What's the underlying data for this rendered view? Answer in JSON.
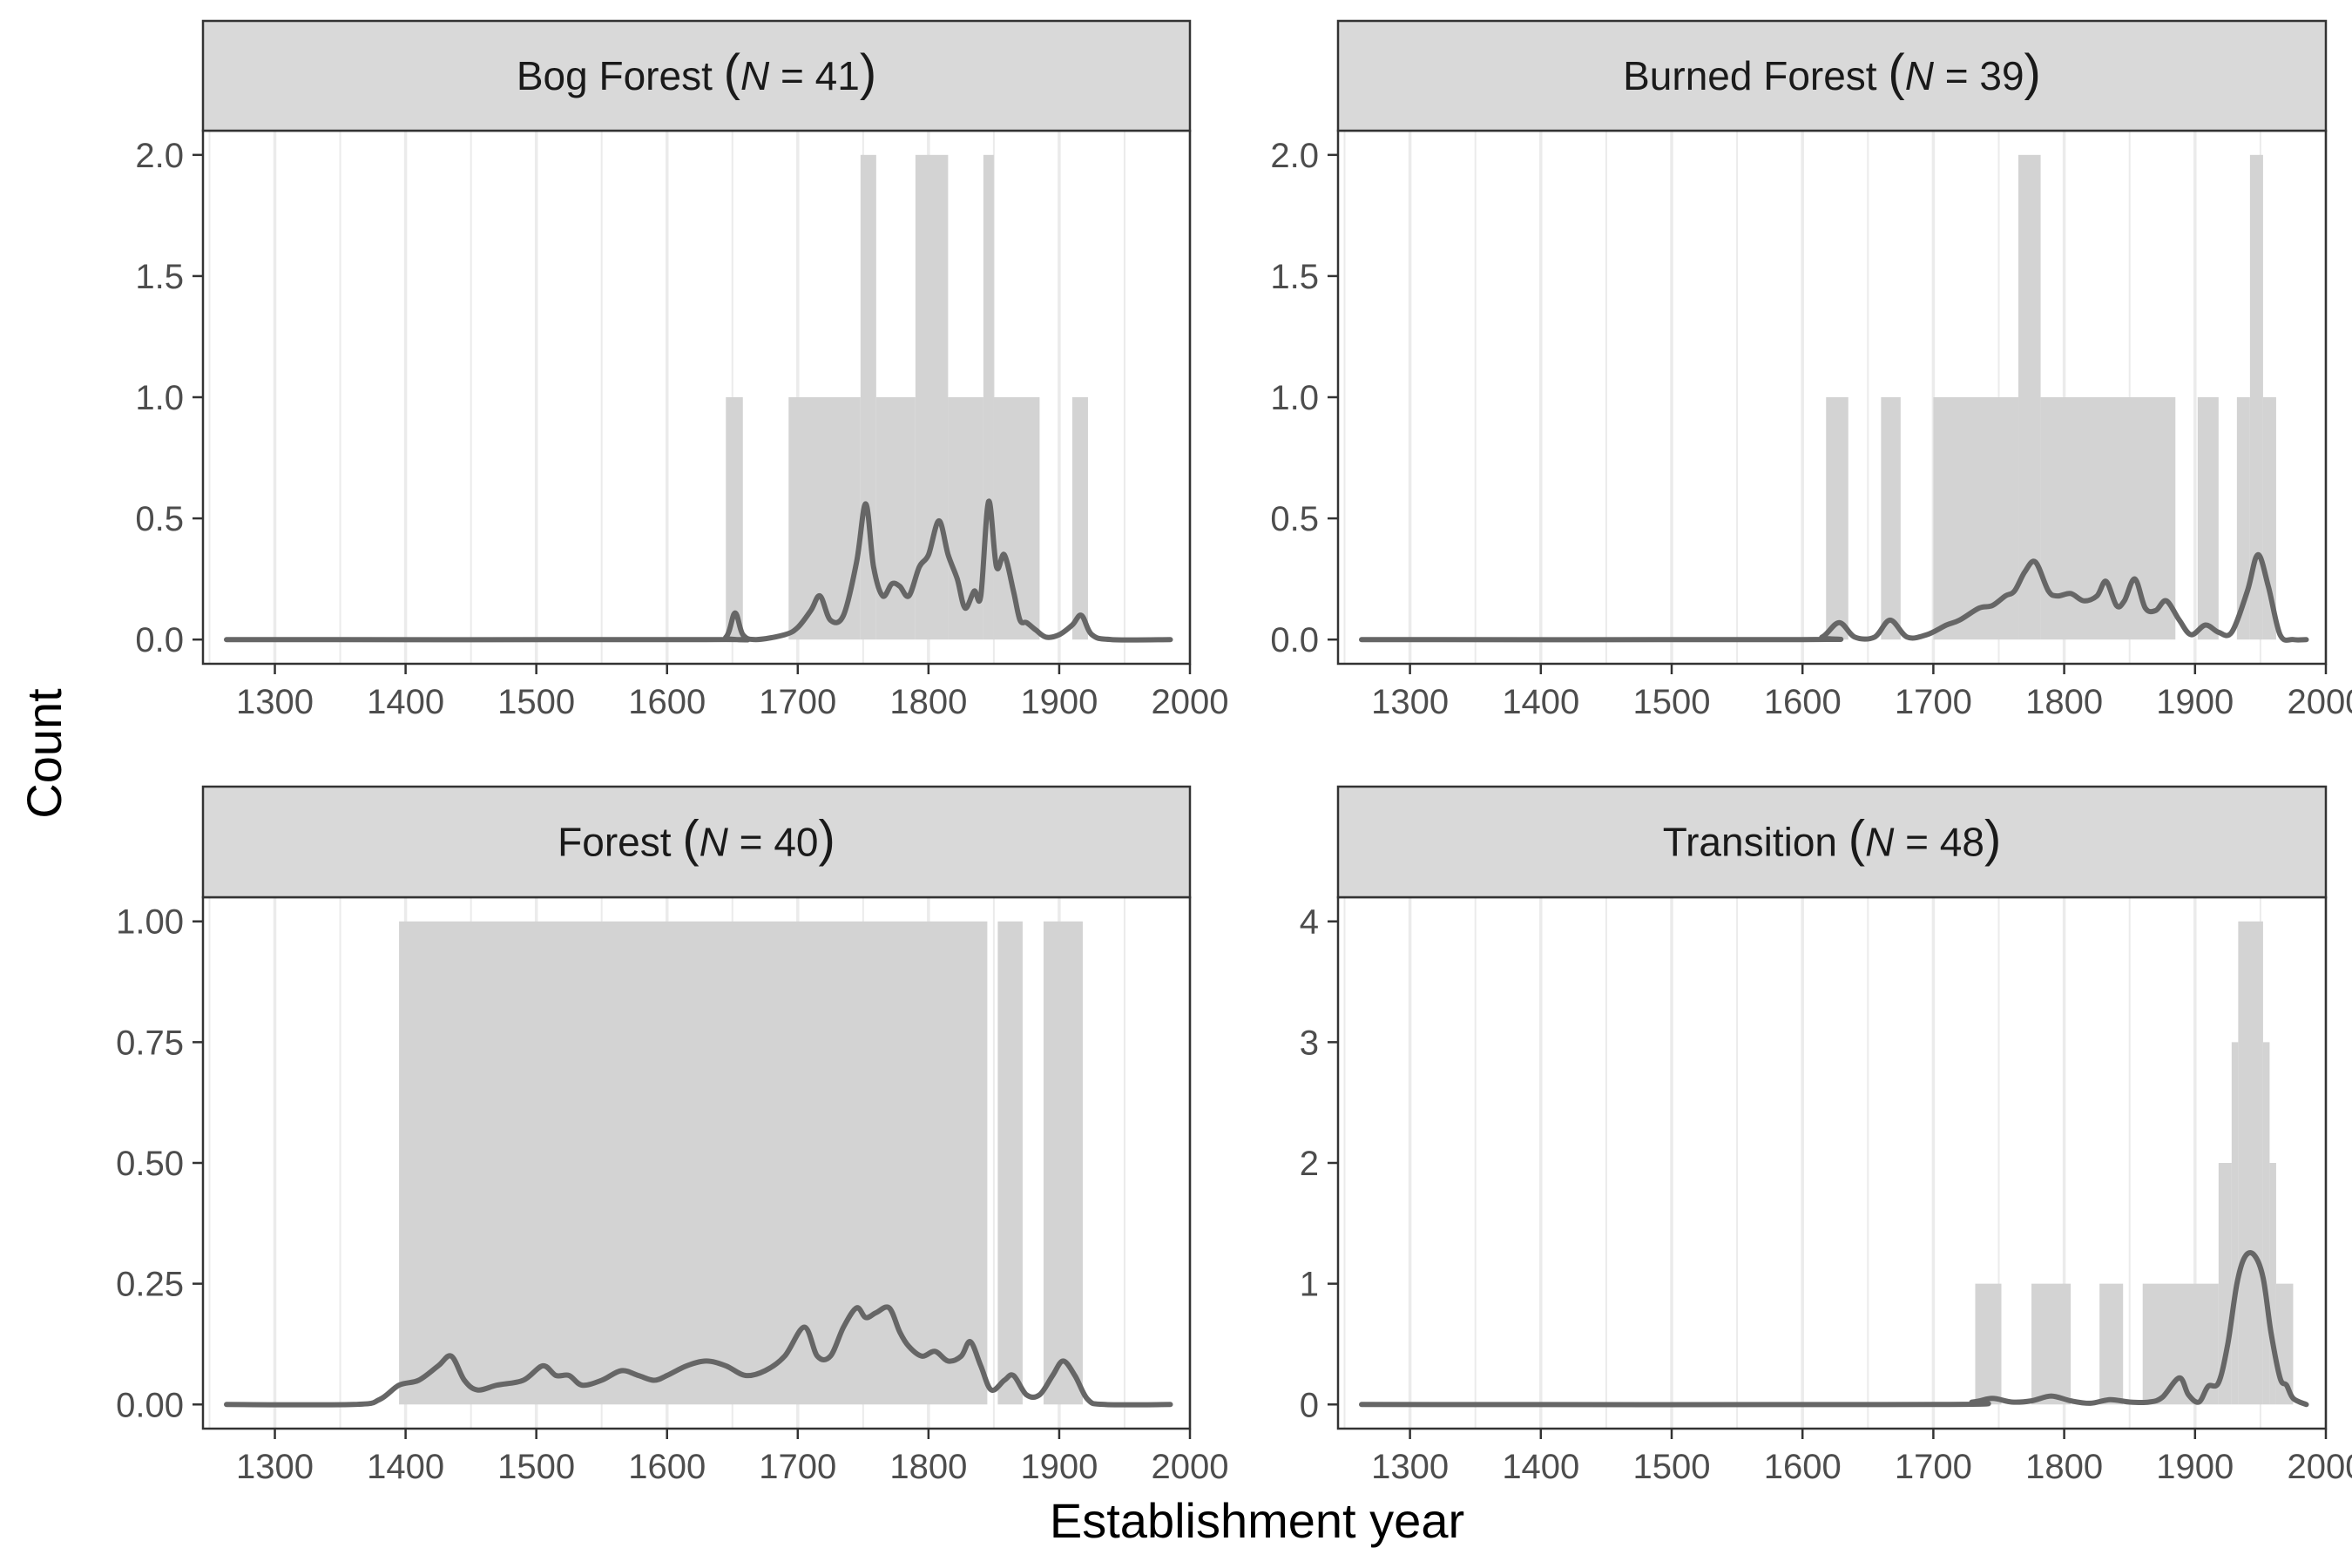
{
  "chart_data": {
    "type": "area",
    "xlabel": "Establishment year",
    "ylabel": "Count",
    "xlim": [
      1245,
      2000
    ],
    "x_ticks": [
      1300,
      1400,
      1500,
      1600,
      1700,
      1800,
      1900,
      2000
    ],
    "colors": {
      "histogram": "#d3d3d3",
      "density": "#666666",
      "grid": "#ebebeb",
      "strip": "#d9d9d9"
    },
    "panels": [
      {
        "title": "Bog Forest",
        "n_label": "41",
        "ylim": [
          -0.1,
          2.1
        ],
        "y_ticks": [
          0.0,
          0.5,
          1.0,
          1.5,
          2.0
        ],
        "y_tick_labels": [
          "0.0",
          "0.5",
          "1.0",
          "1.5",
          "2.0"
        ],
        "histogram": [
          {
            "x0": 1645,
            "x1": 1658,
            "count": 1
          },
          {
            "x0": 1693,
            "x1": 1748,
            "count": 1
          },
          {
            "x0": 1748,
            "x1": 1760,
            "count": 2
          },
          {
            "x0": 1760,
            "x1": 1790,
            "count": 1
          },
          {
            "x0": 1790,
            "x1": 1815,
            "count": 2
          },
          {
            "x0": 1815,
            "x1": 1842,
            "count": 1
          },
          {
            "x0": 1842,
            "x1": 1850,
            "count": 2
          },
          {
            "x0": 1850,
            "x1": 1885,
            "count": 1
          },
          {
            "x0": 1910,
            "x1": 1922,
            "count": 1
          }
        ],
        "density": {
          "x": [
            1263,
            1630,
            1645,
            1652,
            1658,
            1668,
            1690,
            1700,
            1710,
            1717,
            1725,
            1735,
            1745,
            1752,
            1758,
            1765,
            1772,
            1778,
            1785,
            1793,
            1800,
            1808,
            1815,
            1822,
            1828,
            1835,
            1840,
            1846,
            1852,
            1858,
            1865,
            1870,
            1875,
            1882,
            1890,
            1900,
            1910,
            1917,
            1925,
            1940,
            1985
          ],
          "y": [
            0,
            0,
            0.01,
            0.11,
            0.02,
            0,
            0.02,
            0.05,
            0.12,
            0.18,
            0.08,
            0.1,
            0.32,
            0.56,
            0.3,
            0.18,
            0.23,
            0.22,
            0.18,
            0.3,
            0.35,
            0.49,
            0.35,
            0.25,
            0.13,
            0.2,
            0.18,
            0.57,
            0.3,
            0.35,
            0.2,
            0.08,
            0.07,
            0.04,
            0.01,
            0.02,
            0.06,
            0.1,
            0.02,
            0,
            0
          ]
        }
      },
      {
        "title": "Burned Forest",
        "n_label": "39",
        "ylim": [
          -0.1,
          2.1
        ],
        "y_ticks": [
          0.0,
          0.5,
          1.0,
          1.5,
          2.0
        ],
        "y_tick_labels": [
          "0.0",
          "0.5",
          "1.0",
          "1.5",
          "2.0"
        ],
        "histogram": [
          {
            "x0": 1618,
            "x1": 1635,
            "count": 1
          },
          {
            "x0": 1660,
            "x1": 1675,
            "count": 1
          },
          {
            "x0": 1700,
            "x1": 1765,
            "count": 1
          },
          {
            "x0": 1765,
            "x1": 1782,
            "count": 2
          },
          {
            "x0": 1782,
            "x1": 1885,
            "count": 1
          },
          {
            "x0": 1902,
            "x1": 1918,
            "count": 1
          },
          {
            "x0": 1932,
            "x1": 1942,
            "count": 1
          },
          {
            "x0": 1942,
            "x1": 1952,
            "count": 2
          },
          {
            "x0": 1952,
            "x1": 1962,
            "count": 1
          }
        ],
        "density": {
          "x": [
            1263,
            1600,
            1615,
            1628,
            1640,
            1655,
            1667,
            1680,
            1695,
            1710,
            1720,
            1735,
            1745,
            1755,
            1762,
            1770,
            1778,
            1788,
            1795,
            1805,
            1815,
            1825,
            1832,
            1840,
            1846,
            1854,
            1862,
            1870,
            1878,
            1888,
            1897,
            1908,
            1918,
            1928,
            1940,
            1948,
            1956,
            1965,
            1975,
            1985
          ],
          "y": [
            0,
            0,
            0.01,
            0.07,
            0.01,
            0.01,
            0.08,
            0.01,
            0.02,
            0.06,
            0.08,
            0.13,
            0.14,
            0.18,
            0.2,
            0.28,
            0.32,
            0.2,
            0.18,
            0.19,
            0.16,
            0.18,
            0.24,
            0.14,
            0.16,
            0.25,
            0.13,
            0.12,
            0.16,
            0.08,
            0.02,
            0.06,
            0.03,
            0.03,
            0.2,
            0.35,
            0.22,
            0.02,
            0,
            0
          ]
        }
      },
      {
        "title": "Forest",
        "n_label": "40",
        "ylim": [
          -0.05,
          1.05
        ],
        "y_ticks": [
          0.0,
          0.25,
          0.5,
          0.75,
          1.0
        ],
        "y_tick_labels": [
          "0.00",
          "0.25",
          "0.50",
          "0.75",
          "1.00"
        ],
        "histogram": [
          {
            "x0": 1395,
            "x1": 1845,
            "count": 1
          },
          {
            "x0": 1853,
            "x1": 1872,
            "count": 1
          },
          {
            "x0": 1888,
            "x1": 1918,
            "count": 1
          }
        ],
        "density": {
          "x": [
            1263,
            1360,
            1380,
            1395,
            1410,
            1425,
            1435,
            1445,
            1455,
            1470,
            1490,
            1505,
            1515,
            1525,
            1535,
            1550,
            1565,
            1578,
            1590,
            1600,
            1615,
            1630,
            1645,
            1660,
            1675,
            1690,
            1705,
            1715,
            1725,
            1735,
            1745,
            1752,
            1760,
            1770,
            1778,
            1785,
            1795,
            1805,
            1815,
            1825,
            1832,
            1840,
            1848,
            1858,
            1865,
            1875,
            1885,
            1895,
            1903,
            1912,
            1922,
            1935,
            1985
          ],
          "y": [
            0,
            0,
            0.01,
            0.04,
            0.05,
            0.08,
            0.1,
            0.05,
            0.03,
            0.04,
            0.05,
            0.08,
            0.06,
            0.06,
            0.04,
            0.05,
            0.07,
            0.06,
            0.05,
            0.06,
            0.08,
            0.09,
            0.08,
            0.06,
            0.07,
            0.1,
            0.16,
            0.1,
            0.1,
            0.16,
            0.2,
            0.18,
            0.19,
            0.2,
            0.15,
            0.12,
            0.1,
            0.11,
            0.09,
            0.1,
            0.13,
            0.08,
            0.03,
            0.05,
            0.06,
            0.02,
            0.02,
            0.06,
            0.09,
            0.06,
            0.01,
            0,
            0
          ]
        }
      },
      {
        "title": "Transition",
        "n_label": "48",
        "ylim": [
          -0.2,
          4.2
        ],
        "y_ticks": [
          0,
          1,
          2,
          3,
          4
        ],
        "y_tick_labels": [
          "0",
          "1",
          "2",
          "3",
          "4"
        ],
        "histogram": [
          {
            "x0": 1732,
            "x1": 1752,
            "count": 1
          },
          {
            "x0": 1775,
            "x1": 1805,
            "count": 1
          },
          {
            "x0": 1827,
            "x1": 1845,
            "count": 1
          },
          {
            "x0": 1860,
            "x1": 1918,
            "count": 1
          },
          {
            "x0": 1918,
            "x1": 1928,
            "count": 2
          },
          {
            "x0": 1928,
            "x1": 1933,
            "count": 3
          },
          {
            "x0": 1933,
            "x1": 1952,
            "count": 4
          },
          {
            "x0": 1952,
            "x1": 1957,
            "count": 3
          },
          {
            "x0": 1957,
            "x1": 1962,
            "count": 2
          },
          {
            "x0": 1962,
            "x1": 1975,
            "count": 1
          }
        ],
        "density": {
          "x": [
            1263,
            1700,
            1730,
            1745,
            1760,
            1775,
            1790,
            1805,
            1820,
            1835,
            1850,
            1865,
            1875,
            1888,
            1895,
            1903,
            1910,
            1918,
            1925,
            1932,
            1938,
            1945,
            1952,
            1958,
            1965,
            1970,
            1975,
            1985
          ],
          "y": [
            0,
            0,
            0.02,
            0.05,
            0.02,
            0.03,
            0.07,
            0.03,
            0.01,
            0.04,
            0.02,
            0.02,
            0.06,
            0.22,
            0.08,
            0.02,
            0.15,
            0.18,
            0.5,
            1.0,
            1.22,
            1.24,
            1.05,
            0.6,
            0.22,
            0.16,
            0.05,
            0
          ]
        }
      }
    ]
  }
}
